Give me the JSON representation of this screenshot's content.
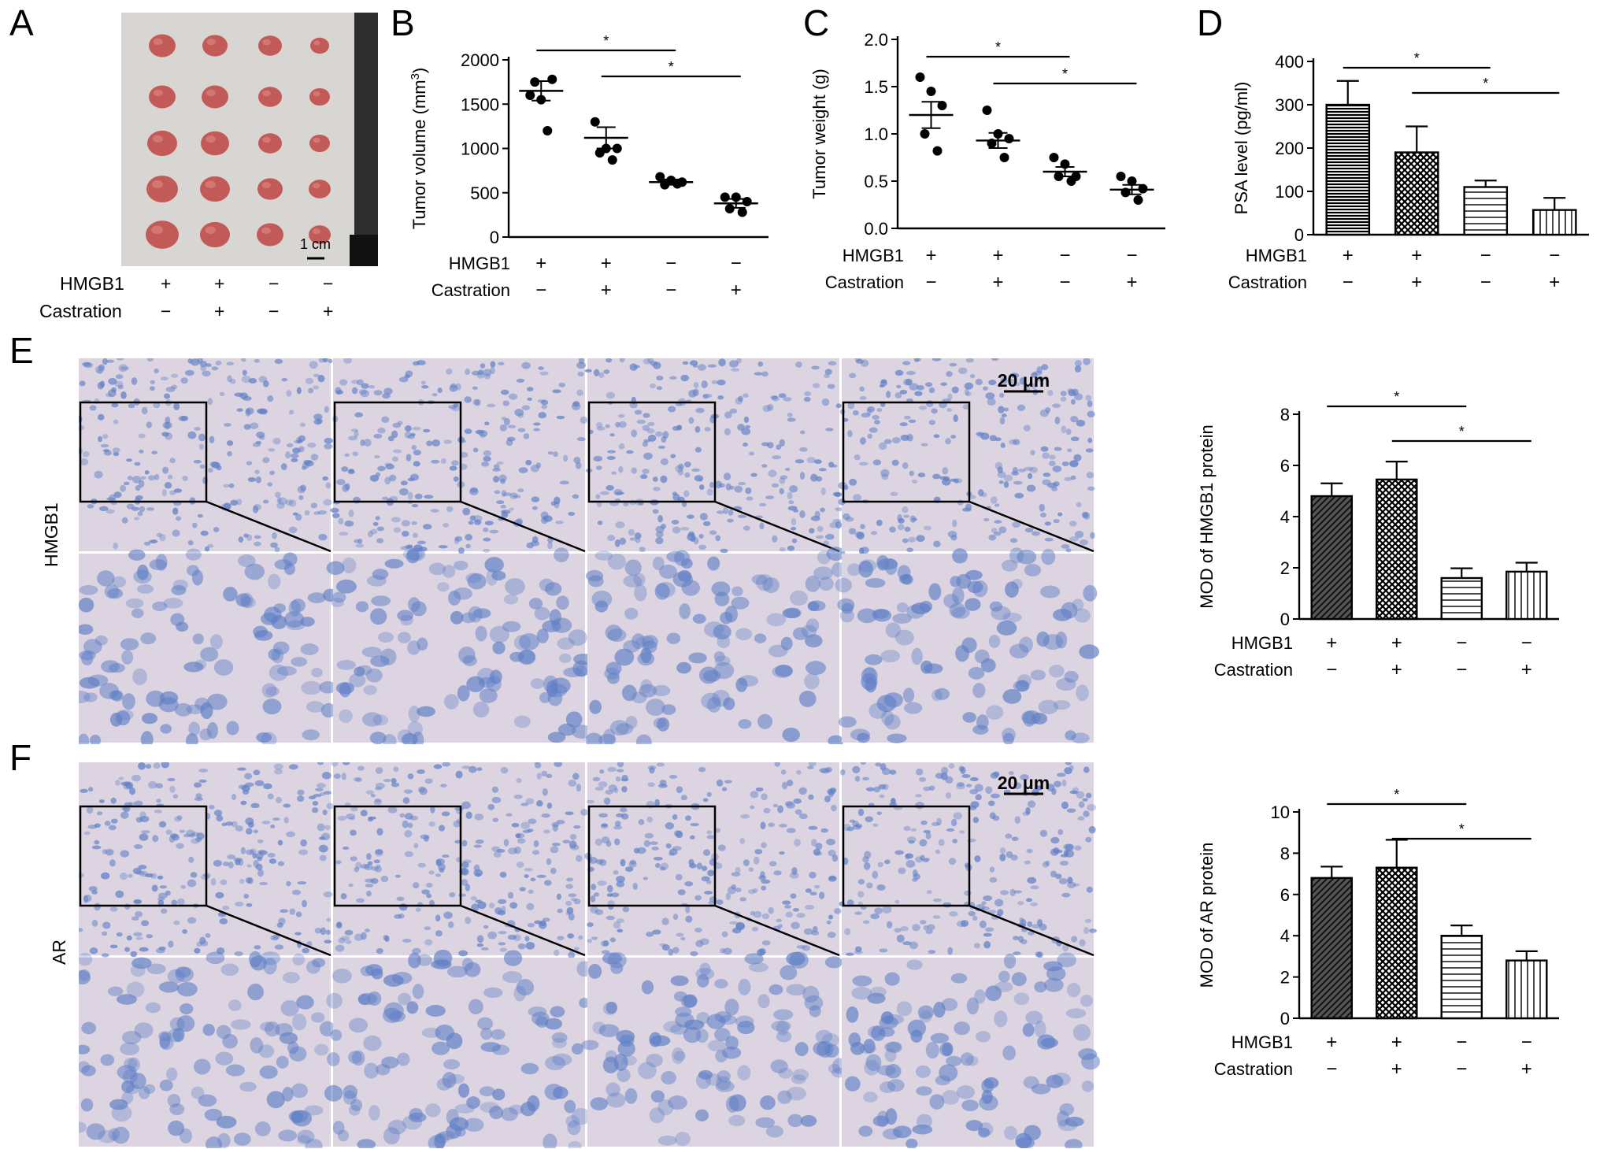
{
  "panel_letters": {
    "A": "A",
    "B": "B",
    "C": "C",
    "D": "D",
    "E": "E",
    "F": "F"
  },
  "photo_a": {
    "scale_label": "1 cm",
    "rows": 5,
    "cols": 4
  },
  "factor_labels": {
    "hmgb1": "HMGB1",
    "castration": "Castration",
    "plus": "+",
    "minus": "−"
  },
  "conditions": [
    {
      "hmgb1": "+",
      "castration": "−"
    },
    {
      "hmgb1": "+",
      "castration": "+"
    },
    {
      "hmgb1": "−",
      "castration": "−"
    },
    {
      "hmgb1": "−",
      "castration": "+"
    }
  ],
  "ihc": {
    "hmgb1_row_label": "HMGB1",
    "ar_row_label": "AR",
    "scale_bar_label": "20 μm",
    "stain_base": "#dcd4e0",
    "nucleus_color": "#5f7fc6"
  },
  "colors": {
    "bar_fill": "#ffffff",
    "stroke": "#000000",
    "tumor": "#c0504d",
    "photo_bg": "#d8d6d2"
  },
  "chart_data": [
    {
      "id": "B",
      "type": "scatter",
      "ylabel": "Tumor volume (mm3)",
      "ylim": [
        0,
        2000
      ],
      "yticks": [
        0,
        500,
        1000,
        1500,
        2000
      ],
      "points": [
        [
          1600,
          1550,
          1780,
          1750,
          1200
        ],
        [
          1300,
          1000,
          1000,
          950,
          870
        ],
        [
          680,
          640,
          620,
          590,
          600
        ],
        [
          450,
          450,
          400,
          320,
          280
        ]
      ],
      "means": [
        1650,
        1120,
        620,
        380
      ],
      "sem": [
        110,
        120,
        30,
        50
      ],
      "significance": [
        {
          "from": 0,
          "to": 2,
          "label": "*"
        },
        {
          "from": 1,
          "to": 3,
          "label": "*"
        }
      ]
    },
    {
      "id": "C",
      "type": "scatter",
      "ylabel": "Tumor weight (g)",
      "ylim": [
        0,
        2.0
      ],
      "yticks": [
        "0.0",
        "0.5",
        "1.0",
        "1.5",
        "2.0"
      ],
      "points": [
        [
          1.6,
          1.45,
          1.3,
          1.0,
          0.82
        ],
        [
          1.25,
          1.0,
          0.95,
          0.9,
          0.75
        ],
        [
          0.75,
          0.68,
          0.55,
          0.55,
          0.5
        ],
        [
          0.55,
          0.5,
          0.42,
          0.38,
          0.3
        ]
      ],
      "means": [
        1.2,
        0.93,
        0.6,
        0.41
      ],
      "sem": [
        0.14,
        0.08,
        0.05,
        0.05
      ],
      "significance": [
        {
          "from": 0,
          "to": 2,
          "label": "*"
        },
        {
          "from": 1,
          "to": 3,
          "label": "*"
        }
      ]
    },
    {
      "id": "D",
      "type": "bar",
      "ylabel": "PSA level (pg/ml)",
      "ylim": [
        0,
        400
      ],
      "yticks": [
        0,
        100,
        200,
        300,
        400
      ],
      "values": [
        300,
        190,
        110,
        57
      ],
      "errors": [
        55,
        60,
        15,
        28
      ],
      "patterns": [
        "horizontal-dark",
        "crosshatch",
        "horizontal",
        "vertical"
      ],
      "significance": [
        {
          "from": 0,
          "to": 2,
          "label": "*"
        },
        {
          "from": 1,
          "to": 3,
          "label": "*"
        }
      ]
    },
    {
      "id": "E",
      "type": "bar",
      "ylabel": "MOD of HMGB1 protein",
      "ylim": [
        0,
        8
      ],
      "yticks": [
        0,
        2,
        4,
        6,
        8
      ],
      "values": [
        4.8,
        5.45,
        1.6,
        1.85
      ],
      "errors": [
        0.5,
        0.7,
        0.38,
        0.35
      ],
      "patterns": [
        "diagonal-dark",
        "crosshatch",
        "horizontal",
        "vertical"
      ],
      "significance": [
        {
          "from": 0,
          "to": 2,
          "label": "*"
        },
        {
          "from": 1,
          "to": 3,
          "label": "*"
        }
      ]
    },
    {
      "id": "F",
      "type": "bar",
      "ylabel": "MOD of AR protein",
      "ylim": [
        0,
        10
      ],
      "yticks": [
        0,
        2,
        4,
        6,
        8,
        10
      ],
      "values": [
        6.8,
        7.3,
        4.0,
        2.8
      ],
      "errors": [
        0.55,
        1.35,
        0.5,
        0.45
      ],
      "patterns": [
        "diagonal-dark",
        "crosshatch",
        "horizontal",
        "vertical"
      ],
      "significance": [
        {
          "from": 0,
          "to": 2,
          "label": "*"
        },
        {
          "from": 1,
          "to": 3,
          "label": "*"
        }
      ]
    }
  ]
}
